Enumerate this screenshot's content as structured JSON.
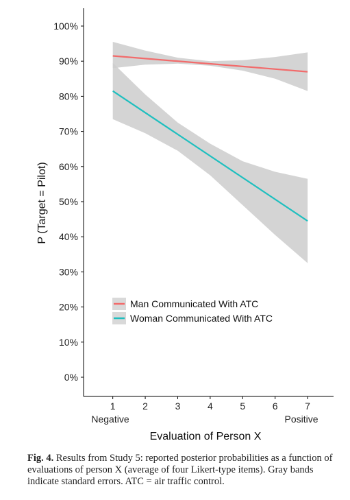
{
  "chart_data": {
    "type": "line",
    "xlabel": "Evaluation of Person X",
    "ylabel": "P (Target = Pilot)",
    "x_ticks": [
      1,
      2,
      3,
      4,
      5,
      6,
      7
    ],
    "x_end_labels": {
      "low": "Negative",
      "high": "Positive"
    },
    "xlim": [
      0.1,
      7.8
    ],
    "ylim": [
      0,
      100
    ],
    "y_ticks": [
      "0%",
      "10%",
      "20%",
      "30%",
      "40%",
      "50%",
      "60%",
      "70%",
      "80%",
      "90%",
      "100%"
    ],
    "grid": false,
    "legend_position": "bottom-left",
    "series": [
      {
        "name": "Man Communicated With ATC",
        "color": "#f26b6b",
        "x": [
          1,
          7
        ],
        "y": [
          91.5,
          87
        ],
        "band_x": [
          1,
          2,
          3,
          4,
          5,
          6,
          7
        ],
        "band_lower": [
          88,
          89,
          89.3,
          88.7,
          87.3,
          85,
          81.5
        ],
        "band_upper": [
          95.5,
          93,
          91,
          90,
          90.3,
          91.2,
          92.5
        ]
      },
      {
        "name": "Woman Communicated With ATC",
        "color": "#1fbfbf",
        "x": [
          1,
          7
        ],
        "y": [
          81.5,
          44.5
        ],
        "band_x": [
          1,
          2,
          3,
          4,
          5,
          6,
          7
        ],
        "band_lower": [
          73.5,
          69.5,
          64.5,
          57.5,
          49,
          40.5,
          32.5
        ],
        "band_upper": [
          89.5,
          80.5,
          72.5,
          66.5,
          61.5,
          58.5,
          56.5
        ]
      }
    ]
  },
  "caption": {
    "label": "Fig. 4.",
    "text": "Results from Study 5: reported posterior probabilities as a function of evaluations of person X (average of four Likert-type items). Gray bands indicate standard errors. ATC = air traffic control."
  },
  "colors": {
    "band": "#cccccc",
    "axis": "#000000"
  }
}
